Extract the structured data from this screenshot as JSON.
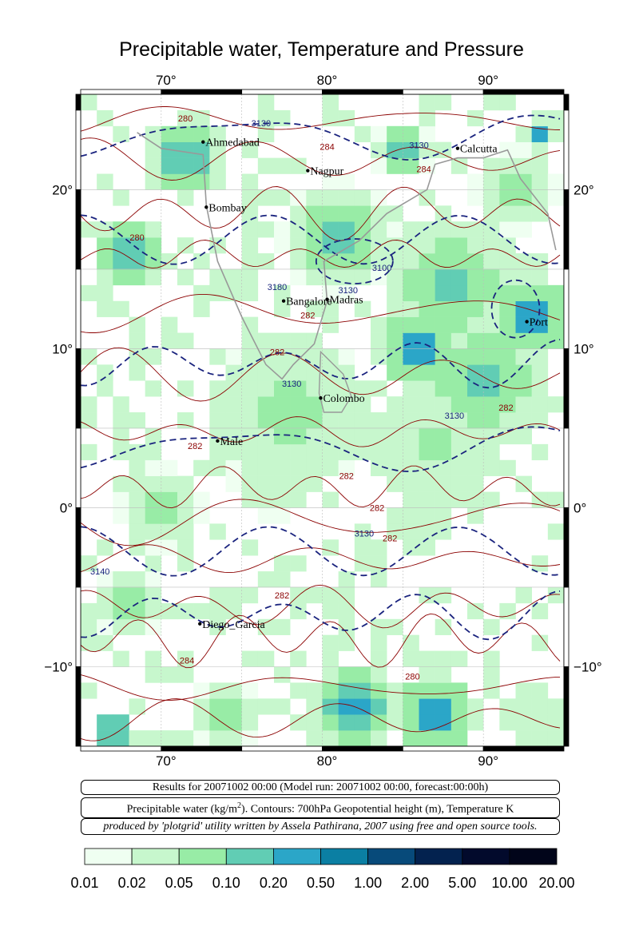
{
  "title": "Precipitable water, Temperature and Pressure",
  "axes": {
    "lon_ticks": [
      "70°",
      "80°",
      "90°"
    ],
    "lat_ticks": [
      "20°",
      "10°",
      "0°",
      "−10°"
    ]
  },
  "cities": [
    {
      "name": "Ahmedabad",
      "lon": 72.6,
      "lat": 23.0
    },
    {
      "name": "Calcutta",
      "lon": 88.4,
      "lat": 22.6
    },
    {
      "name": "Nagpur",
      "lon": 79.1,
      "lat": 21.2
    },
    {
      "name": "Bombay",
      "lon": 72.8,
      "lat": 18.9
    },
    {
      "name": "Madras",
      "lon": 80.3,
      "lat": 13.1
    },
    {
      "name": "Bangalore",
      "lon": 77.6,
      "lat": 13.0
    },
    {
      "name": "Port",
      "lon": 92.7,
      "lat": 11.7
    },
    {
      "name": "Colombo",
      "lon": 79.9,
      "lat": 6.9
    },
    {
      "name": "Male",
      "lon": 73.5,
      "lat": 4.2
    },
    {
      "name": "Diego_Garcia",
      "lon": 72.4,
      "lat": -7.3
    }
  ],
  "contour_labels": [
    {
      "text": "280",
      "lon": 71.5,
      "lat": 24.3,
      "color": "#8b0000"
    },
    {
      "text": "284",
      "lon": 80.3,
      "lat": 22.5,
      "color": "#8b0000"
    },
    {
      "text": "3130",
      "lon": 76.2,
      "lat": 24.0,
      "color": "#1a237e"
    },
    {
      "text": "3130",
      "lon": 86.0,
      "lat": 22.6,
      "color": "#1a237e"
    },
    {
      "text": "284",
      "lon": 86.3,
      "lat": 21.1,
      "color": "#8b0000"
    },
    {
      "text": "280",
      "lon": 68.5,
      "lat": 16.8,
      "color": "#8b0000"
    },
    {
      "text": "3100",
      "lon": 83.7,
      "lat": 14.9,
      "color": "#1a237e"
    },
    {
      "text": "3180",
      "lon": 77.2,
      "lat": 13.7,
      "color": "#1a237e"
    },
    {
      "text": "3130",
      "lon": 81.6,
      "lat": 13.5,
      "color": "#1a237e"
    },
    {
      "text": "282",
      "lon": 79.1,
      "lat": 11.9,
      "color": "#8b0000"
    },
    {
      "text": "282",
      "lon": 77.2,
      "lat": 9.6,
      "color": "#8b0000"
    },
    {
      "text": "3130",
      "lon": 78.1,
      "lat": 7.6,
      "color": "#1a237e"
    },
    {
      "text": "282",
      "lon": 91.4,
      "lat": 6.1,
      "color": "#8b0000"
    },
    {
      "text": "3130",
      "lon": 88.2,
      "lat": 5.6,
      "color": "#1a237e"
    },
    {
      "text": "282",
      "lon": 72.1,
      "lat": 3.7,
      "color": "#8b0000"
    },
    {
      "text": "282",
      "lon": 81.5,
      "lat": 1.8,
      "color": "#8b0000"
    },
    {
      "text": "282",
      "lon": 83.4,
      "lat": -0.2,
      "color": "#8b0000"
    },
    {
      "text": "3130",
      "lon": 82.6,
      "lat": -1.8,
      "color": "#1a237e"
    },
    {
      "text": "282",
      "lon": 84.2,
      "lat": -2.1,
      "color": "#8b0000"
    },
    {
      "text": "3140",
      "lon": 66.2,
      "lat": -4.2,
      "color": "#1a237e"
    },
    {
      "text": "282",
      "lon": 77.5,
      "lat": -5.7,
      "color": "#8b0000"
    },
    {
      "text": "284",
      "lon": 71.6,
      "lat": -9.8,
      "color": "#8b0000"
    },
    {
      "text": "280",
      "lon": 85.6,
      "lat": -10.8,
      "color": "#8b0000"
    }
  ],
  "info": {
    "results": "Results for 20071002 00:00 (Model run: 20071002 00:00, forecast:00:00h)",
    "description_a": "Precipitable water (kg/m",
    "description_sup": "2",
    "description_b": ").  Contours: 700hPa Geopotential height (m), Temperature K",
    "credit": "produced by 'plotgrid' utility written by Assela Pathirana, 2007 using free and open source tools."
  },
  "legend": {
    "labels": [
      "0.01",
      "0.02",
      "0.05",
      "0.10",
      "0.20",
      "0.50",
      "1.00",
      "2.00",
      "5.00",
      "10.00",
      "20.00"
    ],
    "colors": [
      "#effff1",
      "#c7f7cd",
      "#98eca6",
      "#61cdb4",
      "#2ba6c8",
      "#0b7fa3",
      "#074a7a",
      "#03224f",
      "#020a2c",
      "#01051a"
    ]
  },
  "colors": {
    "temperature_contour": "#8b0000",
    "height_contour": "#1a237e",
    "coastline": "#999999"
  }
}
